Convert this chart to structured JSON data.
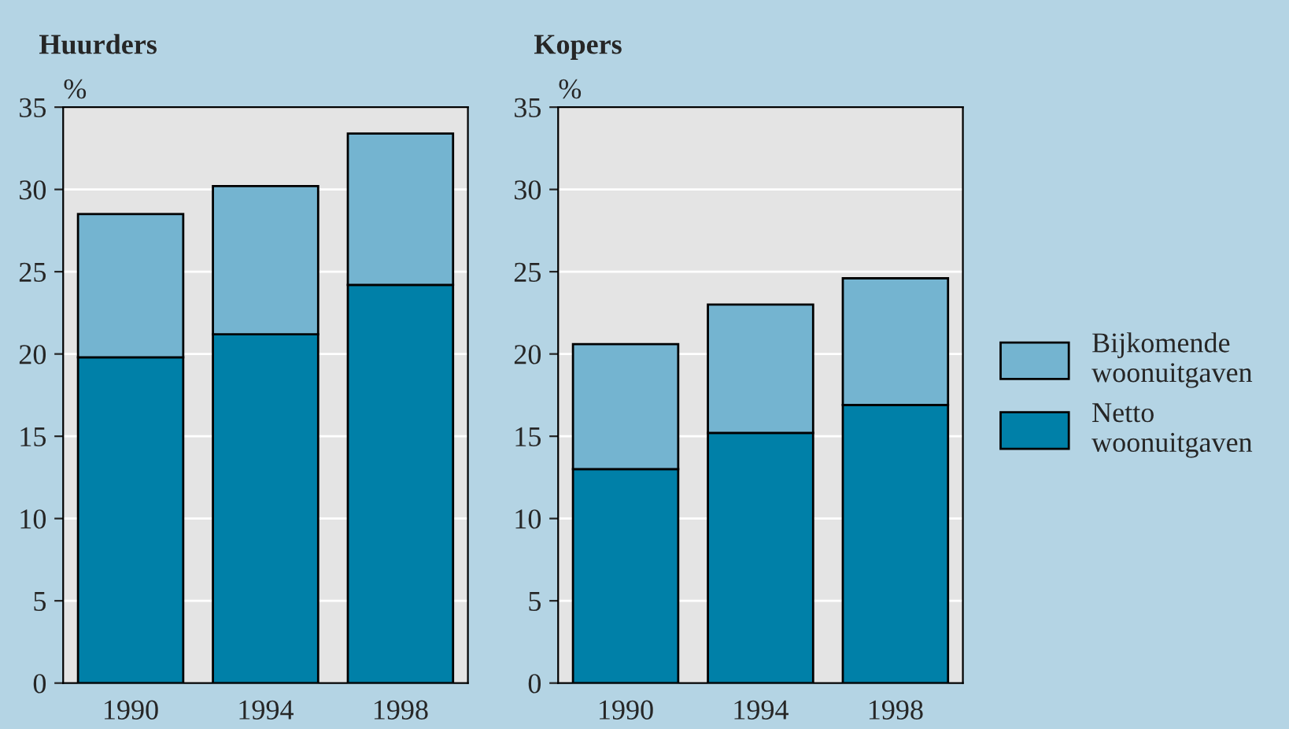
{
  "chart_data": [
    {
      "type": "bar",
      "title": "Huurders",
      "ylabel": "%",
      "categories": [
        "1990",
        "1994",
        "1998"
      ],
      "stacked": true,
      "ylim": [
        0,
        35
      ],
      "yticks": [
        0,
        5,
        10,
        15,
        20,
        25,
        30,
        35
      ],
      "grid": "y",
      "series": [
        {
          "color": "#0080a8",
          "values": [
            19.8,
            21.2,
            24.2
          ]
        },
        {
          "color": "#74b4d0",
          "values": [
            8.7,
            9.0,
            9.2
          ]
        }
      ]
    },
    {
      "type": "bar",
      "title": "Kopers",
      "ylabel": "%",
      "categories": [
        "1990",
        "1994",
        "1998"
      ],
      "stacked": true,
      "ylim": [
        0,
        35
      ],
      "yticks": [
        0,
        5,
        10,
        15,
        20,
        25,
        30,
        35
      ],
      "grid": "y",
      "legend": "right",
      "series": [
        {
          "name": "Netto woonuitgaven",
          "color": "#0080a8",
          "values": [
            13.0,
            15.2,
            16.9
          ]
        },
        {
          "name": "Bijkomende woonuitgaven",
          "color": "#74b4d0",
          "values": [
            7.6,
            7.8,
            7.7
          ]
        }
      ]
    }
  ]
}
